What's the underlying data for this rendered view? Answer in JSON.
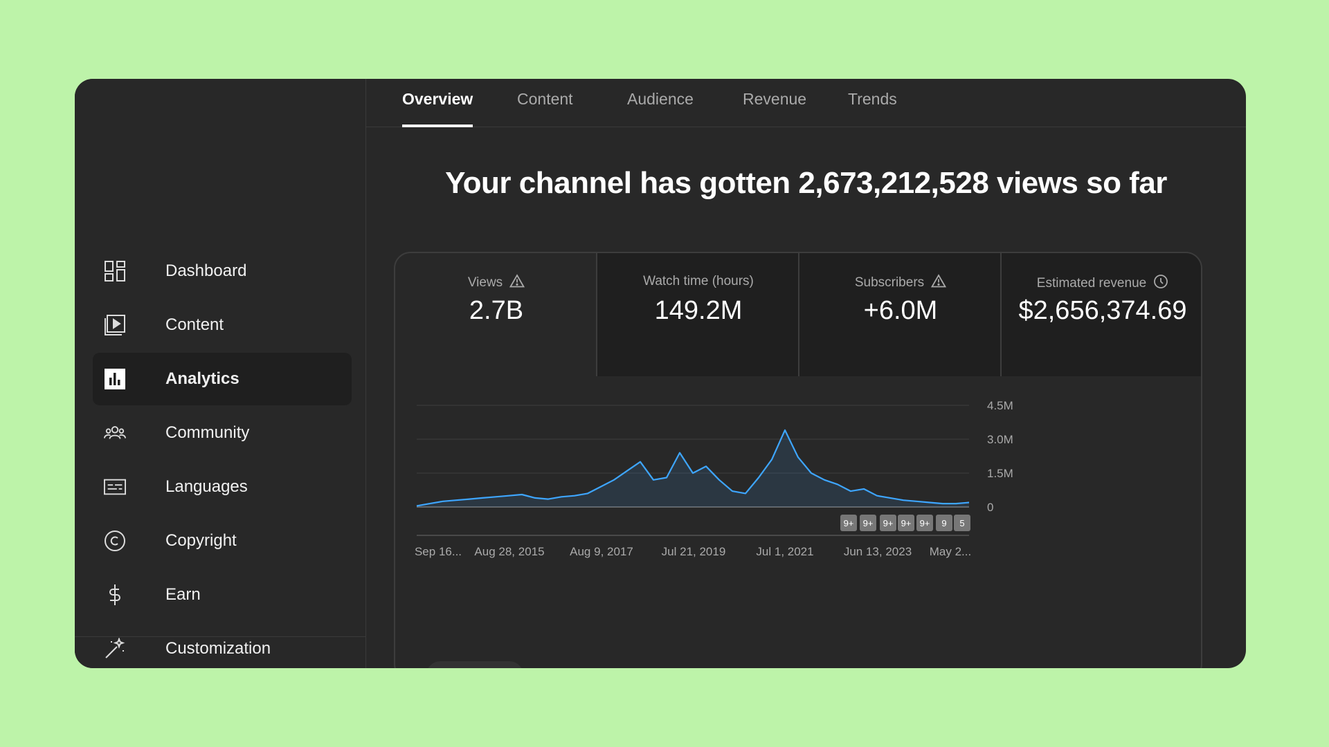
{
  "sidebar": {
    "items": [
      {
        "label": "Dashboard",
        "icon": "dashboard-icon"
      },
      {
        "label": "Content",
        "icon": "content-icon"
      },
      {
        "label": "Analytics",
        "icon": "analytics-icon",
        "active": true
      },
      {
        "label": "Community",
        "icon": "community-icon"
      },
      {
        "label": "Languages",
        "icon": "languages-icon"
      },
      {
        "label": "Copyright",
        "icon": "copyright-icon"
      },
      {
        "label": "Earn",
        "icon": "earn-icon"
      },
      {
        "label": "Customization",
        "icon": "customization-icon"
      }
    ]
  },
  "tabs": [
    {
      "label": "Overview",
      "active": true
    },
    {
      "label": "Content"
    },
    {
      "label": "Audience"
    },
    {
      "label": "Revenue"
    },
    {
      "label": "Trends"
    }
  ],
  "headline": "Your channel has gotten 2,673,212,528 views so far",
  "metrics": [
    {
      "label": "Views",
      "value": "2.7B",
      "icon": "warning-icon"
    },
    {
      "label": "Watch time (hours)",
      "value": "149.2M"
    },
    {
      "label": "Subscribers",
      "value": "+6.0M",
      "icon": "warning-icon"
    },
    {
      "label": "Estimated revenue",
      "value": "$2,656,374.69",
      "icon": "clock-icon"
    }
  ],
  "chart_data": {
    "type": "line",
    "x_tick_labels": [
      "Sep 16...",
      "Aug 28, 2015",
      "Aug 9, 2017",
      "Jul 21, 2019",
      "Jul 1, 2021",
      "Jun 13, 2023",
      "May 2..."
    ],
    "y_tick_labels": [
      "4.5M",
      "3.0M",
      "1.5M",
      "0"
    ],
    "ylim": [
      0,
      4500000
    ],
    "color": "#3ea6ff",
    "series": [
      {
        "values": [
          50000,
          150000,
          250000,
          300000,
          350000,
          400000,
          450000,
          500000,
          550000,
          400000,
          350000,
          450000,
          500000,
          600000,
          900000,
          1200000,
          1600000,
          2000000,
          1200000,
          1300000,
          2400000,
          1500000,
          1800000,
          1200000,
          700000,
          600000,
          1300000,
          2100000,
          3400000,
          2200000,
          1500000,
          1200000,
          1000000,
          700000,
          800000,
          500000,
          400000,
          300000,
          250000,
          200000,
          150000,
          150000,
          200000
        ]
      }
    ],
    "markers": [
      "9+",
      "9+",
      "9+",
      "9+",
      "9+",
      "9",
      "5"
    ]
  },
  "colors": {
    "background": "#bdf3a9",
    "panel": "#282828",
    "accent": "#3ea6ff"
  }
}
